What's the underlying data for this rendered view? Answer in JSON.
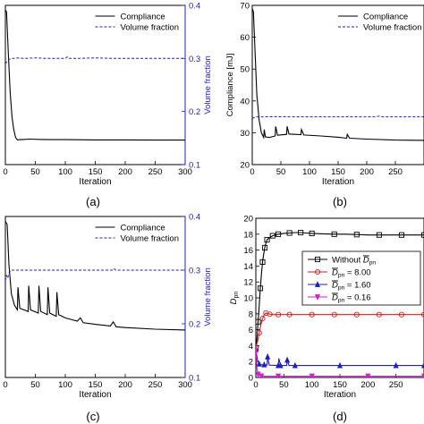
{
  "chart_data": [
    {
      "panel": "(a)",
      "type": "line",
      "xlabel": "Iteration",
      "ylabel_left": "",
      "ylabel_right": "Volume fraction",
      "xlim": [
        0,
        300
      ],
      "xticks": [
        0,
        50,
        100,
        150,
        200,
        250,
        300
      ],
      "ylim_left": [
        0,
        1
      ],
      "ylim_right": [
        0.1,
        0.4
      ],
      "yticks_right": [
        0.1,
        0.2,
        0.3,
        0.4
      ],
      "legend": [
        "Compliance",
        "Volume fraction"
      ],
      "legend_position": "top-right",
      "series": [
        {
          "name": "Compliance",
          "axis": "left",
          "style": "solid",
          "color": "#000000",
          "x": [
            0,
            2,
            5,
            8,
            11,
            14,
            17,
            20,
            25,
            30,
            40,
            60,
            80,
            100,
            120,
            150,
            180,
            200,
            250,
            300
          ],
          "y": [
            0.97,
            0.96,
            0.7,
            0.45,
            0.3,
            0.22,
            0.17,
            0.155,
            0.157,
            0.158,
            0.16,
            0.158,
            0.157,
            0.157,
            0.156,
            0.155,
            0.155,
            0.155,
            0.154,
            0.154
          ]
        },
        {
          "name": "Volume fraction",
          "axis": "right",
          "style": "dashed",
          "color": "#1f1fbf",
          "x": [
            0,
            3,
            6,
            10,
            15,
            20,
            30,
            50,
            70,
            100,
            103,
            106,
            120,
            150,
            180,
            200,
            250,
            300
          ],
          "y": [
            0.29,
            0.295,
            0.298,
            0.3,
            0.3,
            0.301,
            0.3,
            0.301,
            0.3,
            0.3,
            0.303,
            0.3,
            0.3,
            0.301,
            0.3,
            0.3,
            0.3,
            0.3
          ]
        }
      ]
    },
    {
      "panel": "(b)",
      "type": "line",
      "xlabel": "Iteration",
      "ylabel_left": "Compliance [mJ]",
      "xlim": [
        0,
        300
      ],
      "xticks": [
        0,
        50,
        100,
        150,
        200,
        250
      ],
      "ylim_left": [
        20,
        70
      ],
      "yticks_left": [
        20,
        30,
        40,
        50,
        60,
        70
      ],
      "legend": [
        "Compliance",
        "Volume fraction"
      ],
      "legend_position": "top-right",
      "series": [
        {
          "name": "Compliance",
          "axis": "left",
          "style": "solid",
          "color": "#000000",
          "x": [
            0,
            2,
            5,
            8,
            12,
            16,
            20,
            21,
            23,
            30,
            40,
            41,
            44,
            60,
            61,
            64,
            85,
            86,
            90,
            120,
            150,
            165,
            166,
            170,
            200,
            250,
            300
          ],
          "y": [
            69,
            68,
            55,
            42,
            34,
            30,
            28.5,
            31,
            28.7,
            28.5,
            29.0,
            32,
            29.2,
            29.5,
            32,
            29.6,
            29.4,
            31,
            29.3,
            29.0,
            28.6,
            28.3,
            29.5,
            28.3,
            28.0,
            27.7,
            27.6
          ]
        },
        {
          "name": "Volume fraction",
          "axis": "right",
          "style": "dashed",
          "color": "#1f1fbf",
          "x": [
            0,
            3,
            6,
            10,
            20,
            40,
            60,
            80,
            100,
            150,
            165,
            168,
            172,
            200,
            215,
            222,
            228,
            250,
            300
          ],
          "y": [
            0.29,
            0.295,
            0.3,
            0.3,
            0.3,
            0.301,
            0.3,
            0.3,
            0.3,
            0.3,
            0.3,
            0.303,
            0.3,
            0.3,
            0.3,
            0.305,
            0.3,
            0.3,
            0.3
          ]
        }
      ]
    },
    {
      "panel": "(c)",
      "type": "line",
      "xlabel": "Iteration",
      "ylabel_left": "",
      "ylabel_right": "Volume fraction",
      "xlim": [
        0,
        300
      ],
      "xticks": [
        0,
        50,
        100,
        150,
        200,
        250,
        300
      ],
      "ylim_left": [
        0,
        1
      ],
      "ylim_right": [
        0.1,
        0.4
      ],
      "yticks_right": [
        0.1,
        0.2,
        0.3,
        0.4
      ],
      "legend": [
        "Compliance",
        "Volume fraction"
      ],
      "legend_position": "top-right",
      "series": [
        {
          "name": "Compliance",
          "axis": "left",
          "style": "solid",
          "color": "#000000",
          "x": [
            0,
            3,
            6,
            10,
            15,
            20,
            21,
            24,
            38,
            39,
            42,
            55,
            56,
            59,
            70,
            71,
            74,
            85,
            86,
            89,
            100,
            120,
            125,
            130,
            150,
            175,
            180,
            185,
            200,
            250,
            300
          ],
          "y": [
            0.97,
            0.95,
            0.7,
            0.52,
            0.45,
            0.42,
            0.56,
            0.43,
            0.41,
            0.57,
            0.42,
            0.4,
            0.57,
            0.41,
            0.39,
            0.56,
            0.4,
            0.38,
            0.53,
            0.39,
            0.37,
            0.35,
            0.37,
            0.34,
            0.33,
            0.32,
            0.345,
            0.315,
            0.31,
            0.3,
            0.295
          ]
        },
        {
          "name": "Volume fraction",
          "axis": "right",
          "style": "dashed",
          "color": "#1f1fbf",
          "x": [
            0,
            2,
            4,
            6,
            10,
            20,
            50,
            100,
            150,
            178,
            181,
            184,
            200,
            250,
            300
          ],
          "y": [
            0.28,
            0.29,
            0.285,
            0.295,
            0.3,
            0.3,
            0.3,
            0.3,
            0.3,
            0.3,
            0.303,
            0.3,
            0.3,
            0.3,
            0.3
          ]
        }
      ]
    },
    {
      "panel": "(d)",
      "type": "line",
      "xlabel": "Iteration",
      "ylabel_left": "D",
      "ylabel_left_sub": "pn",
      "xlim": [
        0,
        300
      ],
      "xticks": [
        0,
        50,
        100,
        150,
        200,
        250
      ],
      "ylim_left": [
        0,
        20
      ],
      "yticks_left": [
        0,
        2,
        4,
        6,
        8,
        10,
        12,
        14,
        16,
        18,
        20
      ],
      "legend_position": "middle-right",
      "legend": [
        {
          "prefix": "Without ",
          "sym": "D",
          "sub": "pn",
          "suffix": ""
        },
        {
          "prefix": "",
          "sym": "D",
          "sub": "pn",
          "suffix": " = 8.00"
        },
        {
          "prefix": "",
          "sym": "D",
          "sub": "pn",
          "suffix": " = 1.60"
        },
        {
          "prefix": "",
          "sym": "D",
          "sub": "pn",
          "suffix": " = 0.16"
        }
      ],
      "series": [
        {
          "name": "Without Dpn",
          "color": "#000000",
          "marker": "square",
          "x": [
            0,
            2,
            4,
            6,
            8,
            10,
            12,
            14,
            16,
            18,
            20,
            25,
            30,
            35,
            40,
            50,
            60,
            70,
            80,
            90,
            100,
            120,
            140,
            160,
            180,
            200,
            220,
            240,
            260,
            280,
            300
          ],
          "y": [
            3.7,
            5.0,
            7.0,
            9.0,
            11.2,
            13.0,
            14.5,
            15.5,
            16.3,
            16.9,
            17.3,
            17.6,
            17.8,
            17.9,
            18.0,
            18.1,
            18.15,
            18.2,
            18.2,
            18.15,
            18.1,
            18.05,
            18.0,
            18.0,
            17.95,
            17.9,
            17.9,
            17.9,
            17.9,
            17.9,
            17.9
          ]
        },
        {
          "name": "Dpn = 8.00",
          "color": "#d02020",
          "marker": "circle",
          "x": [
            0,
            3,
            6,
            9,
            12,
            15,
            18,
            21,
            25,
            30,
            40,
            50,
            60,
            80,
            100,
            120,
            140,
            160,
            180,
            200,
            220,
            240,
            260,
            280,
            300
          ],
          "y": [
            3.8,
            4.5,
            5.6,
            6.6,
            7.4,
            7.9,
            8.1,
            8.0,
            7.95,
            7.9,
            7.9,
            7.9,
            7.9,
            7.9,
            7.9,
            7.9,
            7.9,
            7.9,
            7.9,
            7.9,
            7.9,
            7.9,
            7.9,
            7.9,
            7.9
          ]
        },
        {
          "name": "Dpn = 1.60",
          "color": "#1f1fbf",
          "marker": "triangle-up",
          "x": [
            0,
            3,
            6,
            10,
            15,
            20,
            21,
            24,
            40,
            41,
            44,
            55,
            56,
            59,
            70,
            100,
            150,
            200,
            250,
            300
          ],
          "y": [
            3.5,
            2.2,
            1.7,
            1.6,
            1.6,
            1.55,
            2.6,
            1.55,
            1.5,
            2.4,
            1.5,
            1.5,
            2.2,
            1.5,
            1.5,
            1.5,
            1.5,
            1.5,
            1.5,
            1.5
          ]
        },
        {
          "name": "Dpn = 0.16",
          "color": "#d020d0",
          "marker": "triangle-down",
          "x": [
            0,
            2,
            4,
            6,
            10,
            20,
            40,
            60,
            100,
            150,
            200,
            250,
            300
          ],
          "y": [
            3.4,
            1.2,
            0.4,
            0.25,
            0.18,
            0.16,
            0.16,
            0.16,
            0.16,
            0.16,
            0.16,
            0.16,
            0.16
          ]
        }
      ]
    }
  ],
  "captions": [
    "(a)",
    "(b)",
    "(c)",
    "(d)"
  ]
}
